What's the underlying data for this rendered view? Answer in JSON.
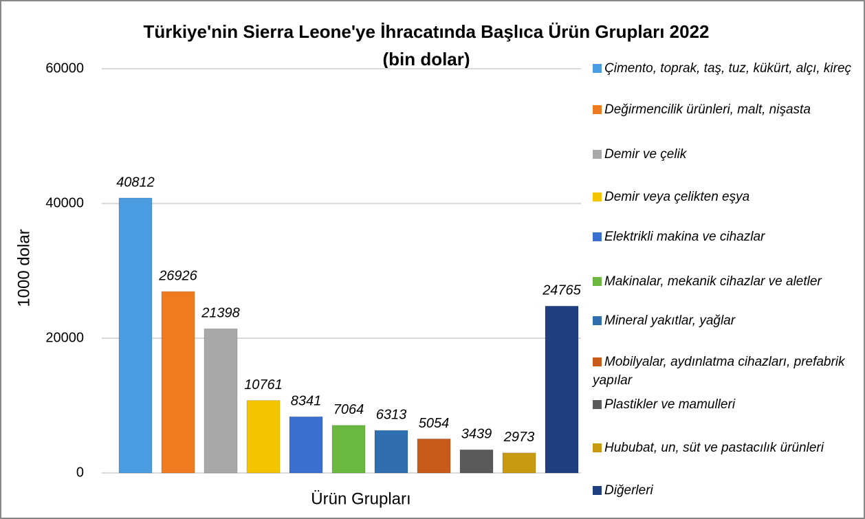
{
  "chart_data": {
    "type": "bar",
    "title": "Türkiye'nin Sierra Leone'ye İhracatında Başlıca Ürün Grupları 2022",
    "subtitle": "(bin dolar)",
    "y_label": "1000 dolar",
    "x_label": "Ürün Grupları",
    "categories": [
      "Çimento, toprak, taş, tuz, kükürt, alçı, kireç",
      "Değirmencilik ürünleri, malt, nişasta",
      "Demir ve çelik",
      "Demir veya çelikten eşya",
      "Elektrikli makina ve cihazlar",
      "Makinalar, mekanik cihazlar ve aletler",
      "Mineral yakıtlar, yağlar",
      "Mobilyalar, aydınlatma cihazları, prefabrik yapılar",
      "Plastikler ve mamulleri",
      "Hububat, un, süt ve pastacılık ürünleri",
      "Diğerleri"
    ],
    "values": [
      40812,
      26926,
      21398,
      10761,
      8341,
      7064,
      6313,
      5054,
      3439,
      2973,
      24765
    ],
    "colors": [
      "#4a9be0",
      "#f07a20",
      "#a8a8a8",
      "#f5c400",
      "#3a6fd0",
      "#6ab840",
      "#2f6fb0",
      "#c85a1a",
      "#5a5a5a",
      "#c89a10",
      "#1f3f80"
    ],
    "ylim": [
      0,
      60000
    ],
    "yticks": [
      0,
      20000,
      40000,
      60000
    ],
    "grid": true,
    "legend": "right"
  }
}
